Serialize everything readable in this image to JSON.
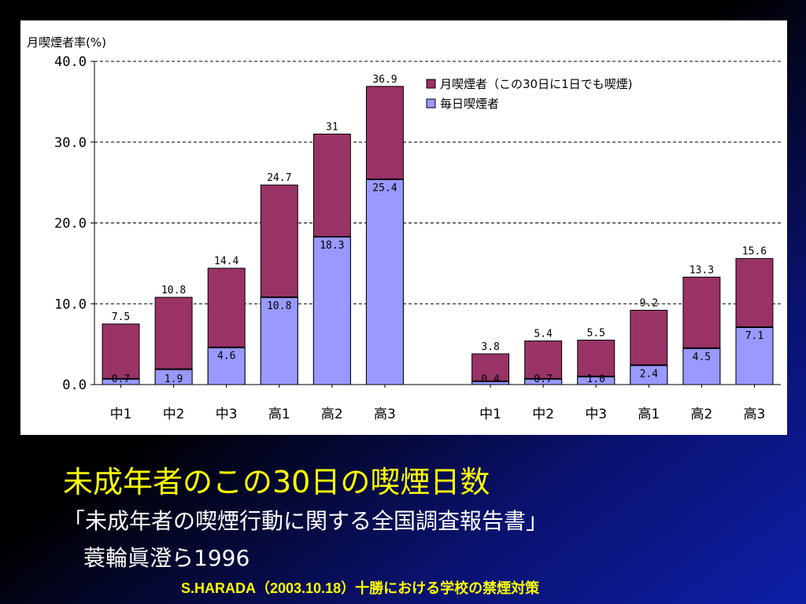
{
  "slide": {
    "title": "未成年者のこの30日の喫煙日数",
    "source_line1": "「未成年者の喫煙行動に関する全国調査報告書」",
    "source_line2": "蓑輪眞澄ら1996",
    "credit": "S.HARADA（2003.10.18）十勝における学校の禁煙対策"
  },
  "colors": {
    "monthly": "#993366",
    "daily": "#9999ff",
    "background_dark": "#000000",
    "background_blue": "#0a1a8c"
  },
  "chart_data": {
    "type": "bar",
    "stacked_overlay": true,
    "ylabel": "月喫煙者率(%)",
    "ylim": [
      0,
      40
    ],
    "yticks": [
      "0.0",
      "10.0",
      "20.0",
      "30.0",
      "40.0"
    ],
    "grid": "horizontal dashed",
    "legend_position": "top-right",
    "categories": [
      "中1",
      "中2",
      "中3",
      "高1",
      "高2",
      "高3",
      "中1",
      "中2",
      "中3",
      "高1",
      "高2",
      "高3"
    ],
    "series": [
      {
        "name": "月喫煙者（この30日に1日でも喫煙)",
        "values": [
          7.5,
          10.8,
          14.4,
          24.7,
          31,
          36.9,
          3.8,
          5.4,
          5.5,
          9.2,
          13.3,
          15.6
        ],
        "labels": [
          "7.5",
          "10.8",
          "14.4",
          "24.7",
          "31",
          "36.9",
          "3.8",
          "5.4",
          "5.5",
          "9.2",
          "13.3",
          "15.6"
        ]
      },
      {
        "name": "毎日喫煙者",
        "values": [
          0.7,
          1.9,
          4.6,
          10.8,
          18.3,
          25.4,
          0.4,
          0.7,
          1.0,
          2.4,
          4.5,
          7.1
        ],
        "labels": [
          "0.7",
          "1.9",
          "4.6",
          "10.8",
          "18.3",
          "25.4",
          "0.4",
          "0.7",
          "1.0",
          "2.4",
          "4.5",
          "7.1"
        ]
      }
    ]
  }
}
